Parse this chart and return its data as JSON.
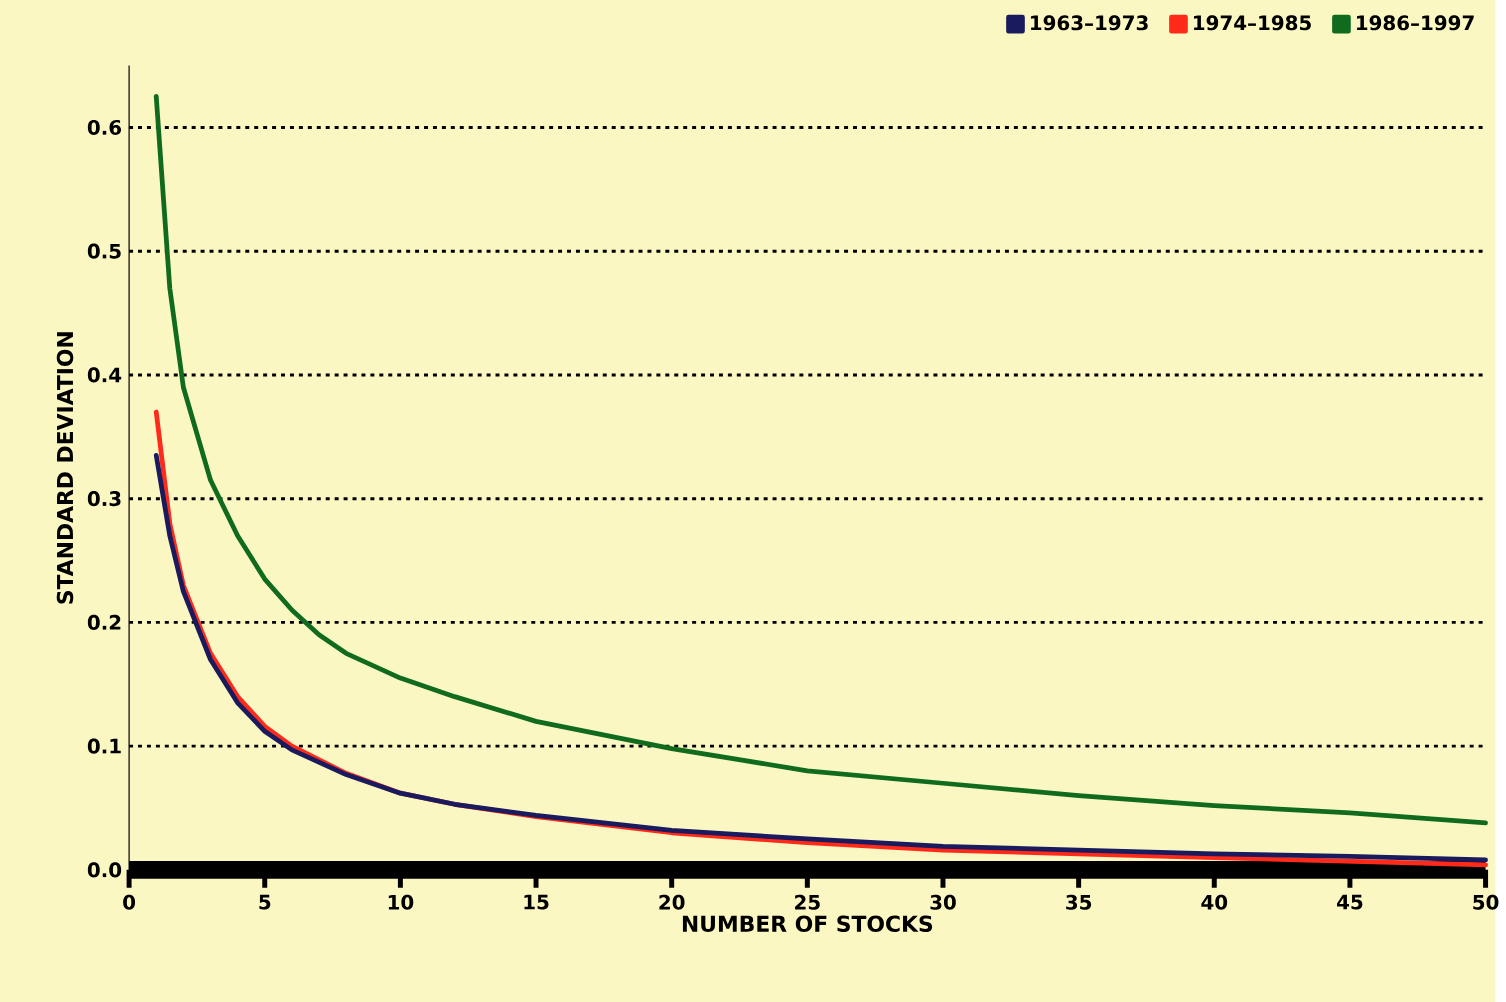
{
  "chart_data": {
    "type": "line",
    "xlabel": "NUMBER OF STOCKS",
    "ylabel": "STANDARD DEVIATION",
    "xlim": [
      0,
      50
    ],
    "xticks": [
      0,
      5,
      10,
      15,
      20,
      25,
      30,
      35,
      40,
      45,
      50
    ],
    "ylim": [
      0,
      0.65
    ],
    "yticks": [
      {
        "value": 0,
        "label": "0.0"
      },
      0.1,
      0.2,
      0.3,
      0.4,
      0.5,
      0.6
    ],
    "grid": "y",
    "legend": "top right",
    "line_style": "solid",
    "marker": "none",
    "series": [
      {
        "name": "1963–1973",
        "color": "#1a1a5e",
        "x": [
          1,
          1.5,
          2,
          3,
          4,
          5,
          6,
          8,
          10,
          12,
          15,
          20,
          25,
          30,
          35,
          40,
          45,
          50
        ],
        "values": [
          0.335,
          0.27,
          0.225,
          0.17,
          0.135,
          0.112,
          0.097,
          0.077,
          0.062,
          0.053,
          0.044,
          0.032,
          0.025,
          0.019,
          0.016,
          0.013,
          0.011,
          0.008
        ]
      },
      {
        "name": "1974–1985",
        "color": "#ff2a1a",
        "x": [
          1,
          1.5,
          2,
          3,
          4,
          5,
          6,
          8,
          10,
          12,
          15,
          20,
          25,
          30,
          35,
          40,
          45,
          50
        ],
        "values": [
          0.37,
          0.28,
          0.23,
          0.175,
          0.14,
          0.116,
          0.1,
          0.078,
          0.062,
          0.053,
          0.043,
          0.03,
          0.022,
          0.016,
          0.013,
          0.01,
          0.007,
          0.004
        ]
      },
      {
        "name": "1986–1997",
        "color": "#116b1e",
        "x": [
          1,
          1.5,
          2,
          3,
          4,
          5,
          6,
          7,
          8,
          10,
          12,
          15,
          20,
          25,
          30,
          35,
          40,
          45,
          50
        ],
        "values": [
          0.625,
          0.47,
          0.39,
          0.315,
          0.27,
          0.235,
          0.21,
          0.19,
          0.175,
          0.155,
          0.14,
          0.12,
          0.098,
          0.08,
          0.07,
          0.06,
          0.052,
          0.046,
          0.038
        ]
      }
    ]
  }
}
